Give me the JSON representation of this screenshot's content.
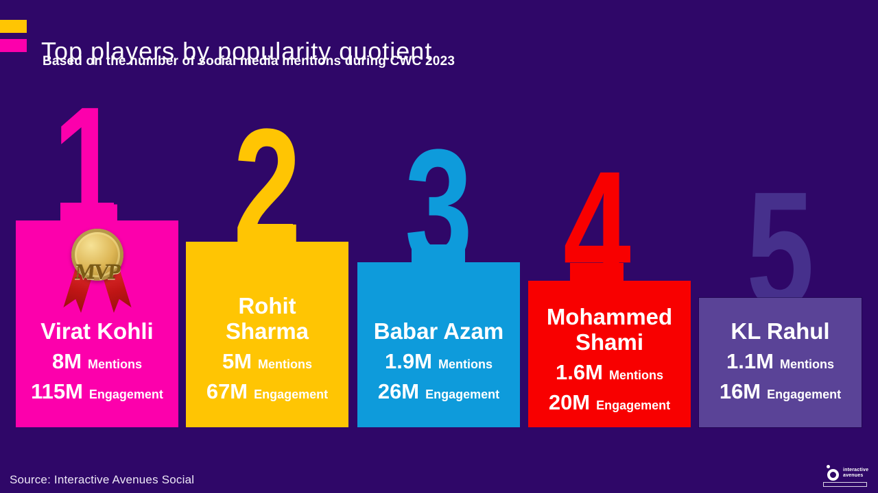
{
  "page": {
    "background_color": "#2F0768"
  },
  "header": {
    "title": "Top players by popularity quotient",
    "subtitle": "Based on the number of social media mentions during CWC 2023",
    "accent_bar_top_color": "#FFC503",
    "accent_bar_bottom_color": "#FC00AC"
  },
  "labels": {
    "mentions": "Mentions",
    "engagement": "Engagement"
  },
  "chart_data": {
    "type": "bar",
    "title": "Top players by popularity quotient",
    "subtitle": "Based on the number of social media mentions during CWC 2023",
    "categories": [
      "Virat Kohli",
      "Rohit Sharma",
      "Babar Azam",
      "Mohammed Shami",
      "KL Rahul"
    ],
    "series": [
      {
        "name": "Mentions (millions)",
        "values": [
          8,
          5,
          1.9,
          1.6,
          1.1
        ]
      },
      {
        "name": "Engagement (millions)",
        "values": [
          115,
          67,
          26,
          20,
          16
        ]
      }
    ],
    "players": [
      {
        "rank": "1",
        "name": "Virat Kohli",
        "mentions": "8M",
        "engagement": "115M",
        "color": "#FC00AC",
        "rank_color": "#FC00AC",
        "badge": "MVP"
      },
      {
        "rank": "2",
        "name": "Rohit Sharma",
        "mentions": "5M",
        "engagement": "67M",
        "color": "#FFC503",
        "rank_color": "#FFC503"
      },
      {
        "rank": "3",
        "name": "Babar Azam",
        "mentions": "1.9M",
        "engagement": "26M",
        "color": "#0E9BDB",
        "rank_color": "#0E9BDB"
      },
      {
        "rank": "4",
        "name": "Mohammed Shami",
        "mentions": "1.6M",
        "engagement": "20M",
        "color": "#F80000",
        "rank_color": "#F80000"
      },
      {
        "rank": "5",
        "name": "KL Rahul",
        "mentions": "1.1M",
        "engagement": "16M",
        "color": "#5A4397",
        "rank_color": "#46308C"
      }
    ]
  },
  "footer": {
    "source": "Source: Interactive Avenues Social",
    "logo": {
      "line1": "interactive",
      "line2": "avenues"
    }
  }
}
